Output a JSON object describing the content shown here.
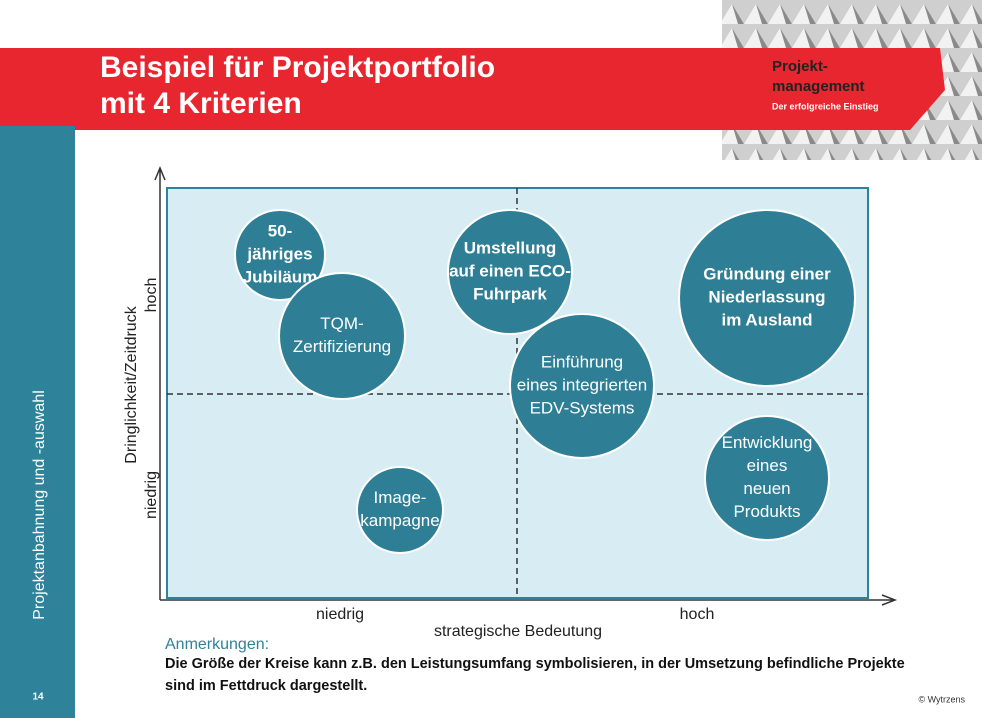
{
  "header": {
    "title_lines": [
      "Beispiel für Projektportfolio",
      "mit 4 Kriterien"
    ]
  },
  "logo": {
    "lines": [
      "Projekt-",
      "management"
    ],
    "subtitle": "Der erfolgreiche Einstieg"
  },
  "sidebar": {
    "label": "Projektanbahnung und -auswahl",
    "page": "14"
  },
  "diagram": {
    "y_axis": {
      "label": "Dringlichkeit/Zeitdruck",
      "high": "hoch",
      "low": "niedrig"
    },
    "x_axis": {
      "label": "strategische Bedeutung",
      "high": "hoch",
      "low": "niedrig"
    },
    "nodes": [
      {
        "lines": [
          "50-",
          "jähriges",
          "Jubiläum"
        ]
      },
      {
        "lines": [
          "TQM-",
          "Zertifizierung"
        ]
      },
      {
        "lines": [
          "Umstellung",
          "auf einen ECO-",
          "Fuhrpark"
        ]
      },
      {
        "lines": [
          "Gründung einer",
          "Niederlassung",
          "im Ausland"
        ]
      },
      {
        "lines": [
          "Einführung",
          "eines integrierten",
          "EDV-Systems"
        ]
      },
      {
        "lines": [
          "Entwicklung",
          "eines",
          "neuen",
          "Produkts"
        ]
      },
      {
        "lines": [
          "Image-",
          "kampagne"
        ]
      }
    ]
  },
  "notes": {
    "heading": "Anmerkungen:",
    "lines": [
      "Die Größe der Kreise kann z.B. den Leistungsumfang symbolisieren, in der Umsetzung befindliche Projekte",
      "sind im Fettdruck dargestellt."
    ]
  },
  "footer": {
    "copyright": "© Wytrzens"
  }
}
